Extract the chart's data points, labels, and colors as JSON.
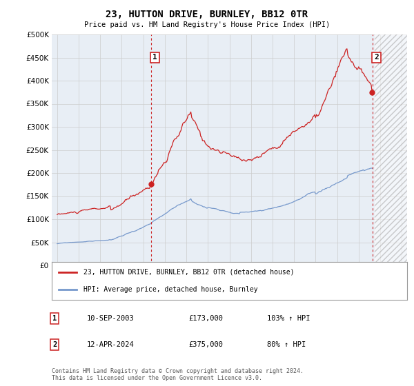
{
  "title": "23, HUTTON DRIVE, BURNLEY, BB12 0TR",
  "subtitle": "Price paid vs. HM Land Registry's House Price Index (HPI)",
  "ytick_values": [
    0,
    50000,
    100000,
    150000,
    200000,
    250000,
    300000,
    350000,
    400000,
    450000,
    500000
  ],
  "xlim_start": 1994.5,
  "xlim_end": 2027.5,
  "ylim": [
    0,
    500000
  ],
  "background_color": "#e8eef5",
  "hatch_color": "#c8d0dc",
  "sale1_date": 2003.71,
  "sale1_price": 173000,
  "sale2_date": 2024.28,
  "sale2_price": 375000,
  "annotation1_label": "1",
  "annotation2_label": "2",
  "legend_line1": "23, HUTTON DRIVE, BURNLEY, BB12 0TR (detached house)",
  "legend_line2": "HPI: Average price, detached house, Burnley",
  "table_row1": [
    "1",
    "10-SEP-2003",
    "£173,000",
    "103% ↑ HPI"
  ],
  "table_row2": [
    "2",
    "12-APR-2024",
    "£375,000",
    "80% ↑ HPI"
  ],
  "footer": "Contains HM Land Registry data © Crown copyright and database right 2024.\nThis data is licensed under the Open Government Licence v3.0.",
  "line_color_red": "#cc2222",
  "line_color_blue": "#7799cc",
  "dashed_line_color": "#cc2222",
  "grid_color": "#cccccc",
  "future_start": 2024.5
}
